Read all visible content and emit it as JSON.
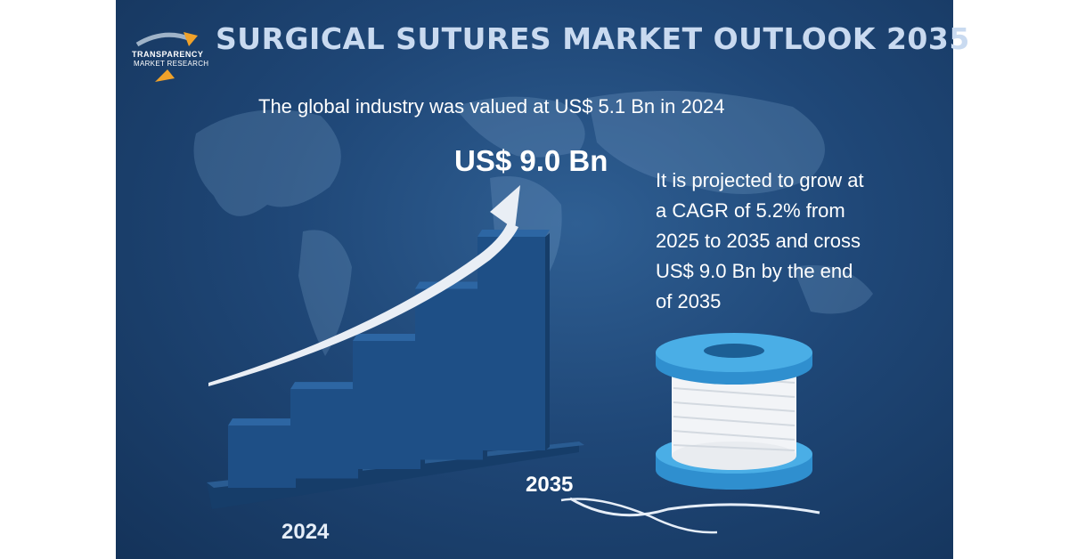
{
  "header": {
    "title": "SURGICAL SUTURES MARKET OUTLOOK 2035",
    "subtitle": "The global industry was valued at US$ 5.1 Bn in 2024"
  },
  "logo": {
    "line1": "TRANSPARENCY",
    "line2": "MARKET RESEARCH"
  },
  "highlight": {
    "value_text": "US$ 9.0 Bn"
  },
  "projection": {
    "lines": [
      "It is projected to grow at",
      " a CAGR of 5.2% from",
      " 2025 to 2035 and cross",
      " US$ 9.0 Bn by the end",
      " of 2035"
    ]
  },
  "axis": {
    "start_label": "2024",
    "end_label": "2035"
  },
  "colors": {
    "background": "#1f4777",
    "bar_front": "#1e4f86",
    "bar_top": "#2d66a3",
    "bar_side": "#163d69",
    "arrow": "#e9eef5",
    "spool": "#3a9bd6"
  },
  "icons": [
    "world-map",
    "growth-arrow",
    "suture-spool"
  ],
  "chart_data": {
    "type": "bar",
    "categories": [
      "2024",
      "",
      "",
      "",
      "2035"
    ],
    "values": [
      5.1,
      5.8,
      6.8,
      7.9,
      9.0
    ],
    "units": "US$ Bn",
    "ylim": [
      3.5,
      9.0
    ],
    "grid": false,
    "legend": "none"
  }
}
